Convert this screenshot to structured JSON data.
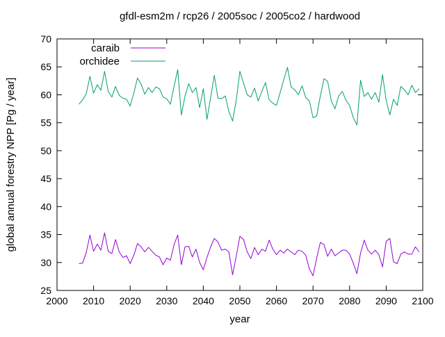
{
  "title": "gfdl-esm2m / rcp26 / 2005soc / 2005co2 / hardwood",
  "colors": {
    "background": "#ffffff",
    "frame": "#000000",
    "text": "#000000",
    "caraib": "#9400d3",
    "orchidee": "#009e73"
  },
  "chart_data": {
    "type": "line",
    "title": "gfdl-esm2m / rcp26 / 2005soc / 2005co2 / hardwood",
    "xlabel": "year",
    "ylabel": "global annual forestry NPP [Pg / year]",
    "xlim": [
      2000,
      2100
    ],
    "ylim": [
      25,
      70
    ],
    "xticks": [
      2000,
      2010,
      2020,
      2030,
      2040,
      2050,
      2060,
      2070,
      2080,
      2090,
      2100
    ],
    "yticks": [
      25,
      30,
      35,
      40,
      45,
      50,
      55,
      60,
      65,
      70
    ],
    "grid": false,
    "legend_position": "inside-top-left",
    "tick_style": "inward-mirrored",
    "years": [
      2006,
      2007,
      2008,
      2009,
      2010,
      2011,
      2012,
      2013,
      2014,
      2015,
      2016,
      2017,
      2018,
      2019,
      2020,
      2021,
      2022,
      2023,
      2024,
      2025,
      2026,
      2027,
      2028,
      2029,
      2030,
      2031,
      2032,
      2033,
      2034,
      2035,
      2036,
      2037,
      2038,
      2039,
      2040,
      2041,
      2042,
      2043,
      2044,
      2045,
      2046,
      2047,
      2048,
      2049,
      2050,
      2051,
      2052,
      2053,
      2054,
      2055,
      2056,
      2057,
      2058,
      2059,
      2060,
      2061,
      2062,
      2063,
      2064,
      2065,
      2066,
      2067,
      2068,
      2069,
      2070,
      2071,
      2072,
      2073,
      2074,
      2075,
      2076,
      2077,
      2078,
      2079,
      2080,
      2081,
      2082,
      2083,
      2084,
      2085,
      2086,
      2087,
      2088,
      2089,
      2090,
      2091,
      2092,
      2093,
      2094,
      2095,
      2096,
      2097,
      2098,
      2099
    ],
    "series": [
      {
        "name": "caraib",
        "color": "#9400d3",
        "values": [
          29.8,
          29.9,
          31.8,
          34.9,
          32.0,
          33.3,
          32.2,
          35.3,
          32.0,
          31.6,
          34.1,
          31.9,
          30.9,
          31.2,
          29.8,
          31.3,
          33.4,
          32.8,
          31.9,
          32.7,
          32.0,
          31.3,
          31.0,
          29.6,
          30.8,
          30.4,
          33.2,
          34.9,
          29.6,
          32.8,
          32.9,
          31.0,
          32.4,
          30.0,
          28.7,
          30.9,
          32.8,
          34.3,
          33.7,
          32.2,
          32.4,
          31.9,
          27.8,
          31.1,
          34.7,
          34.1,
          31.9,
          30.7,
          32.7,
          31.4,
          32.4,
          32.0,
          34.0,
          32.4,
          31.4,
          32.2,
          31.7,
          32.4,
          31.9,
          31.4,
          32.2,
          32.0,
          31.3,
          28.9,
          27.6,
          30.8,
          33.6,
          33.2,
          31.1,
          32.4,
          31.2,
          31.7,
          32.2,
          32.2,
          31.5,
          29.9,
          28.0,
          31.7,
          34.0,
          32.2,
          31.5,
          32.2,
          31.4,
          29.2,
          33.8,
          34.3,
          30.1,
          29.8,
          31.5,
          31.9,
          31.5,
          31.5,
          32.8,
          31.9
        ]
      },
      {
        "name": "orchidee",
        "color": "#009e73",
        "values": [
          58.3,
          59.1,
          60.2,
          63.3,
          60.3,
          61.8,
          60.8,
          64.2,
          60.6,
          59.6,
          61.5,
          59.9,
          59.4,
          59.2,
          58.0,
          60.3,
          63.0,
          61.9,
          60.1,
          61.3,
          60.4,
          61.4,
          61.1,
          59.6,
          59.3,
          58.3,
          61.5,
          64.5,
          56.4,
          59.8,
          62.0,
          60.4,
          61.3,
          57.7,
          61.1,
          55.6,
          59.5,
          63.5,
          59.4,
          59.3,
          59.8,
          57.0,
          55.3,
          59.0,
          64.2,
          62.1,
          60.0,
          59.6,
          61.2,
          58.9,
          60.6,
          62.2,
          59.1,
          58.5,
          58.1,
          60.4,
          62.7,
          64.9,
          61.4,
          60.9,
          60.0,
          61.6,
          59.5,
          58.9,
          55.9,
          56.2,
          59.8,
          62.9,
          62.4,
          58.9,
          57.5,
          59.8,
          60.6,
          59.0,
          58.1,
          55.9,
          54.6,
          62.6,
          59.7,
          60.4,
          59.2,
          60.4,
          58.7,
          63.6,
          59.0,
          56.4,
          59.2,
          58.1,
          61.5,
          60.9,
          60.0,
          61.7,
          60.4,
          61.1
        ]
      }
    ]
  }
}
